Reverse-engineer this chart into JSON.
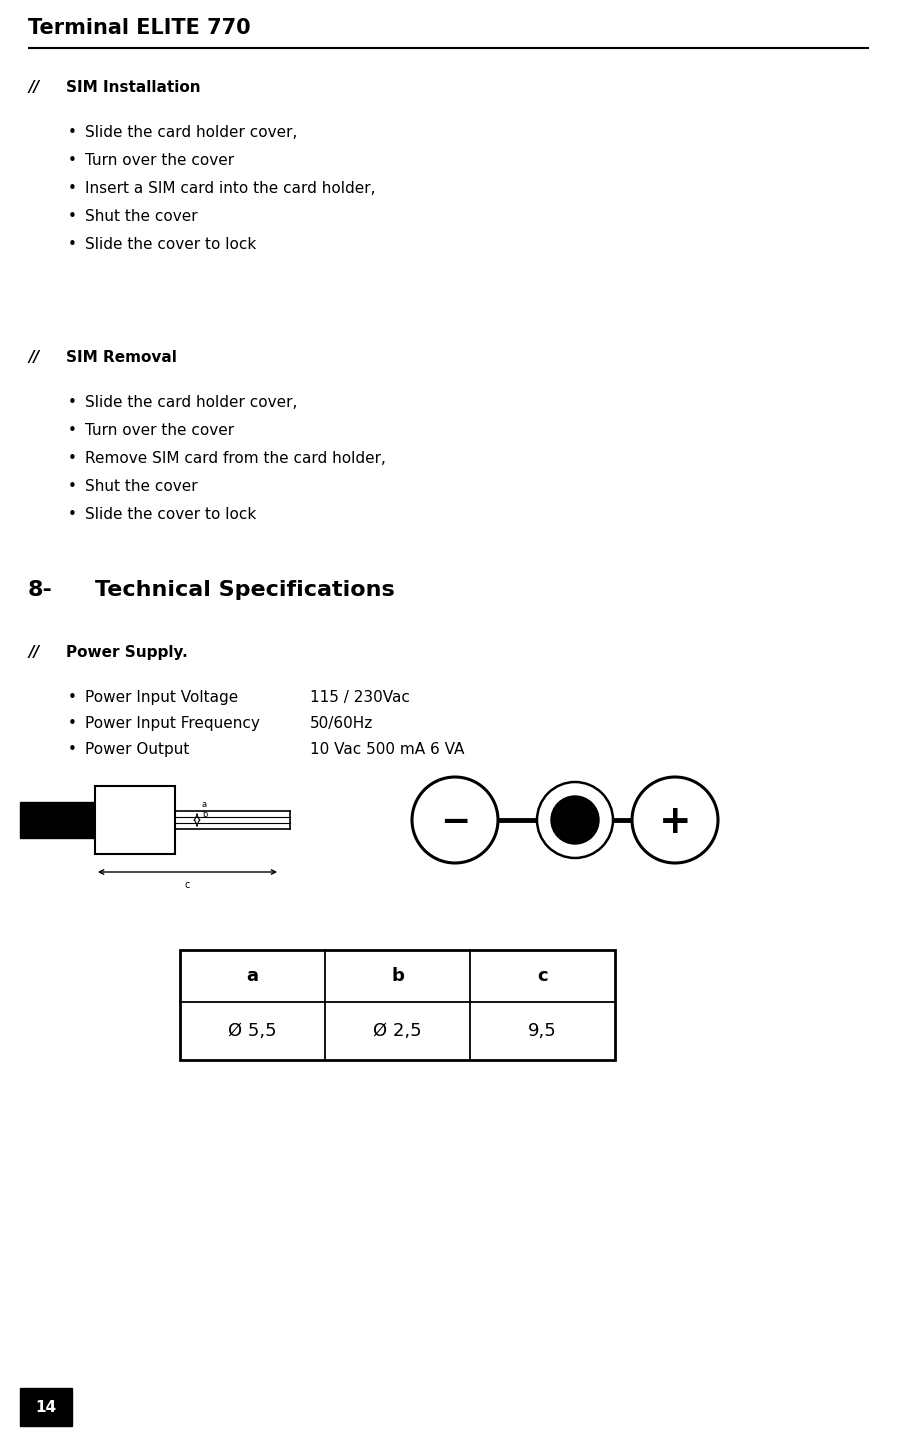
{
  "title": "Terminal ELITE 770",
  "page_number": "14",
  "bg_color": "#ffffff",
  "sim_installation_header": "SIM Installation",
  "sim_installation_bullets": [
    "Slide the card holder cover,",
    "Turn over the cover",
    "Insert a SIM card into the card holder,",
    "Shut the cover",
    "Slide the cover to lock"
  ],
  "sim_removal_header": "SIM Removal",
  "sim_removal_bullets": [
    "Slide the card holder cover,",
    "Turn over the cover",
    "Remove SIM card from the card holder,",
    "Shut the cover",
    "Slide the cover to lock"
  ],
  "tech_spec_header": "8-",
  "tech_spec_header2": "Technical Specifications",
  "power_supply_header": "Power Supply.",
  "power_supply_bullets": [
    [
      "Power Input Voltage",
      "115 / 230Vac"
    ],
    [
      "Power Input Frequency",
      "50/60Hz"
    ],
    [
      "Power Output",
      "10 Vac 500 mA 6 VA"
    ]
  ],
  "table_headers": [
    "a",
    "b",
    "c"
  ],
  "table_values": [
    "Ø 5,5",
    "Ø 2,5",
    "9,5"
  ]
}
